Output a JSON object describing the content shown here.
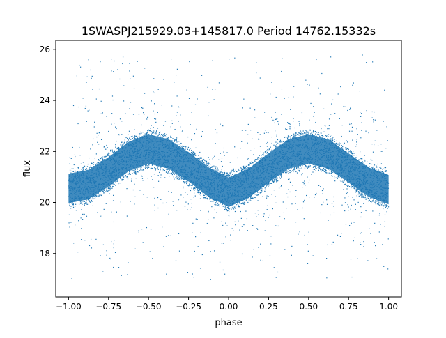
{
  "chart_data": {
    "type": "scatter",
    "title": "1SWASPJ215929.03+145817.0 Period 14762.15332s",
    "xlabel": "phase",
    "ylabel": "flux",
    "xlim": [
      -1.08,
      1.08
    ],
    "ylim": [
      16.3,
      26.35
    ],
    "xticks": [
      -1.0,
      -0.75,
      -0.5,
      -0.25,
      0.0,
      0.25,
      0.5,
      0.75,
      1.0
    ],
    "xtick_labels": [
      "−1.00",
      "−0.75",
      "−0.50",
      "−0.25",
      "0.00",
      "0.25",
      "0.50",
      "0.75",
      "1.00"
    ],
    "yticks": [
      18,
      20,
      22,
      24,
      26
    ],
    "ytick_labels": [
      "18",
      "20",
      "22",
      "24",
      "26"
    ],
    "grid": false,
    "legend": "none",
    "marker_color": "#1f77b4",
    "series": [
      {
        "phase_range": [
          -1.0,
          1.0
        ],
        "trend": {
          "x": [
            -1.0,
            -0.875,
            -0.75,
            -0.625,
            -0.5,
            -0.375,
            -0.25,
            -0.125,
            0.0,
            0.125,
            0.25,
            0.375,
            0.5,
            0.625,
            0.75,
            0.875,
            1.0
          ],
          "y": [
            20.55,
            20.7,
            21.2,
            21.8,
            22.1,
            21.9,
            21.4,
            20.8,
            20.4,
            20.75,
            21.35,
            21.9,
            22.1,
            21.9,
            21.35,
            20.8,
            20.5
          ]
        },
        "band_halfwidth": 0.8,
        "scatter_range": [
          16.9,
          25.8
        ]
      }
    ]
  }
}
